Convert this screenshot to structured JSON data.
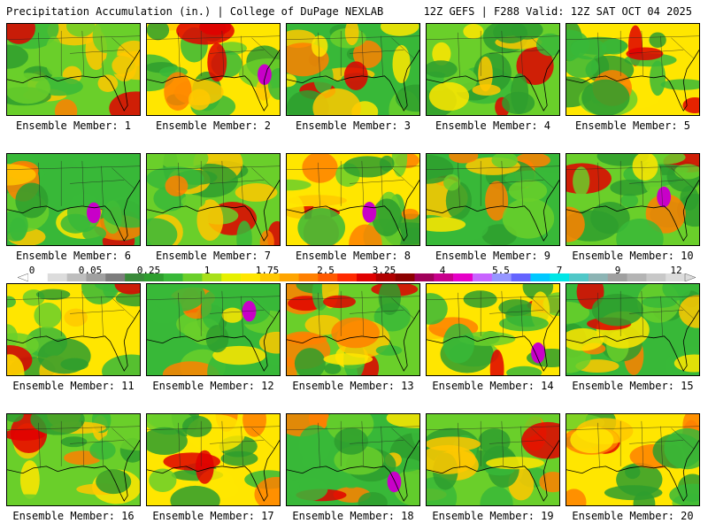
{
  "header": {
    "left": "Precipitation Accumulation (in.) | College of DuPage NEXLAB",
    "right": "12Z GEFS | F288 Valid: 12Z SAT OCT 04 2025"
  },
  "panels": [
    {
      "caption": "Ensemble Member: 1"
    },
    {
      "caption": "Ensemble Member: 2"
    },
    {
      "caption": "Ensemble Member: 3"
    },
    {
      "caption": "Ensemble Member: 4"
    },
    {
      "caption": "Ensemble Member: 5"
    },
    {
      "caption": "Ensemble Member: 6"
    },
    {
      "caption": "Ensemble Member: 7"
    },
    {
      "caption": "Ensemble Member: 8"
    },
    {
      "caption": "Ensemble Member: 9"
    },
    {
      "caption": "Ensemble Member: 10"
    },
    {
      "caption": "Ensemble Member: 11"
    },
    {
      "caption": "Ensemble Member: 12"
    },
    {
      "caption": "Ensemble Member: 13"
    },
    {
      "caption": "Ensemble Member: 14"
    },
    {
      "caption": "Ensemble Member: 15"
    },
    {
      "caption": "Ensemble Member: 16"
    },
    {
      "caption": "Ensemble Member: 17"
    },
    {
      "caption": "Ensemble Member: 18"
    },
    {
      "caption": "Ensemble Member: 19"
    },
    {
      "caption": "Ensemble Member: 20"
    }
  ],
  "scale": {
    "labels": [
      "0",
      "0.05",
      "0.25",
      "1",
      "1.75",
      "2.5",
      "3.25",
      "4",
      "5.5",
      "7",
      "9",
      "12"
    ],
    "colors": [
      "#ffffff",
      "#dcdcdc",
      "#bebebe",
      "#a0a0a0",
      "#7d7d7d",
      "#3a8a3a",
      "#2e9e2e",
      "#38b838",
      "#6acf2a",
      "#a8e01a",
      "#e6f000",
      "#ffe600",
      "#ffc800",
      "#ffa500",
      "#ff8000",
      "#ff5a00",
      "#ff2a00",
      "#e00000",
      "#b00000",
      "#8c0000",
      "#a0005a",
      "#c8008c",
      "#e600c8",
      "#c864ff",
      "#9696ff",
      "#6464ff",
      "#00c8ff",
      "#00e6e6",
      "#50c8c8",
      "#8cb4b4",
      "#a0a0a0",
      "#b4b4b4",
      "#c8c8c8",
      "#dcdcdc"
    ]
  }
}
